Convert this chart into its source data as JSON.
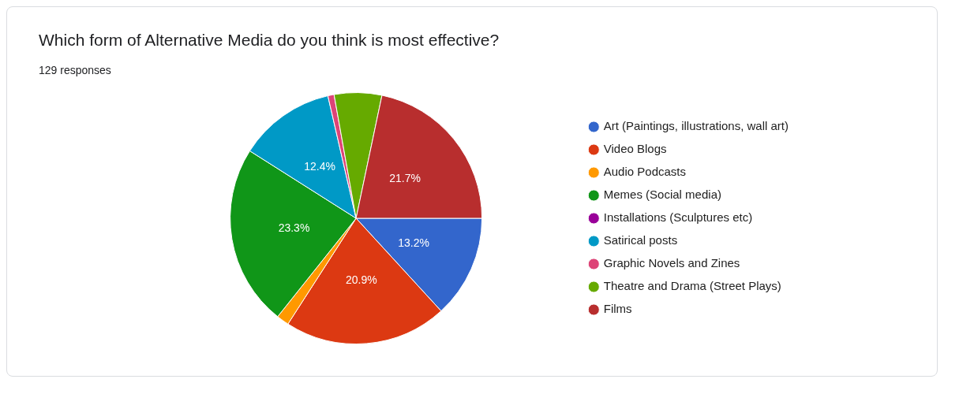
{
  "chart_data": {
    "type": "pie",
    "title": "Which form of Alternative Media do you think is most effective?",
    "subtitle": "129 responses",
    "categories": [
      "Art (Paintings, illustrations, wall art)",
      "Video Blogs",
      "Audio Podcasts",
      "Memes (Social media)",
      "Installations (Sculptures etc)",
      "Satirical posts",
      "Graphic Novels and Zines",
      "Theatre and Drama (Street Plays)",
      "Films"
    ],
    "values": [
      13.2,
      20.9,
      1.6,
      23.3,
      0,
      12.4,
      0.8,
      6.1,
      21.7
    ],
    "colors": [
      "#3366cc",
      "#dc3912",
      "#ff9900",
      "#109618",
      "#990099",
      "#0099c6",
      "#dd4477",
      "#66aa00",
      "#b82e2e"
    ],
    "value_labels": [
      "13.2%",
      "20.9%",
      null,
      "23.3%",
      null,
      "12.4%",
      null,
      null,
      "21.7%"
    ],
    "legend": "right"
  }
}
